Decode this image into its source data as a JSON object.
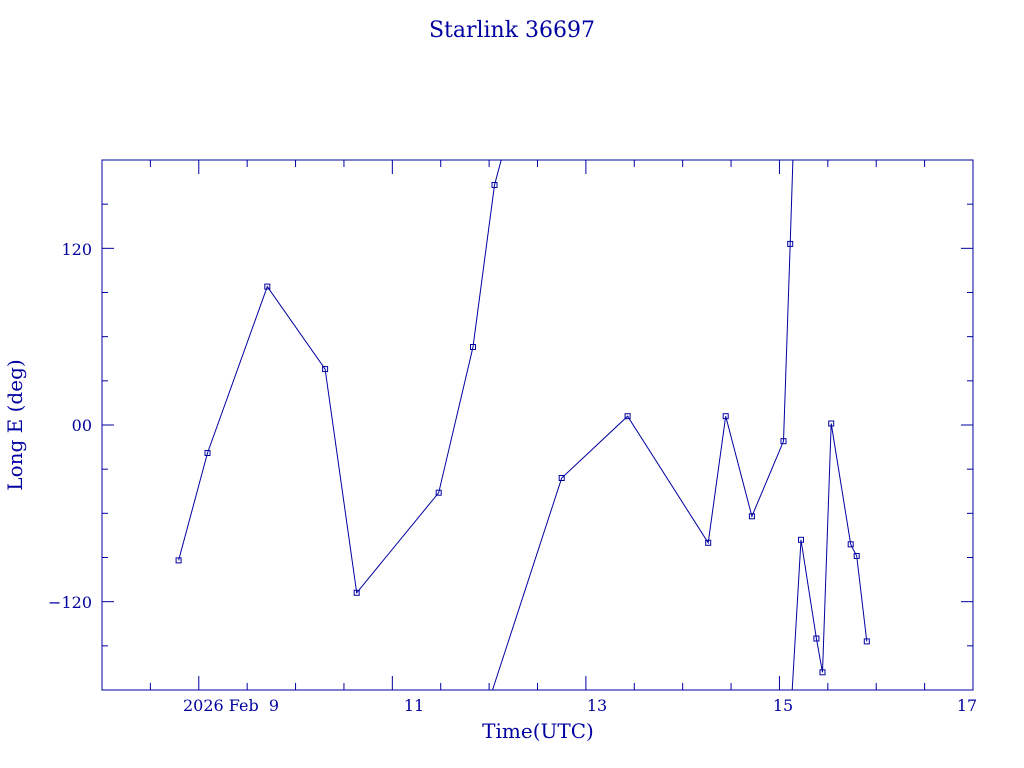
{
  "chart_data": {
    "type": "line",
    "title": "Starlink 36697",
    "xlabel": "Time(UTC)",
    "ylabel": "Long E (deg)",
    "x_tick_labels": [
      "2026 Feb  9",
      "11",
      "13",
      "15",
      "17"
    ],
    "y_tick_labels": [
      "120",
      "00",
      "−120"
    ],
    "xlim": [
      "2026-02-08 00:00",
      "2026-02-17 00:00"
    ],
    "ylim": [
      -180,
      180
    ],
    "grid": false,
    "color": "#0000a0",
    "series": [
      {
        "points": [
          {
            "x": "2026-02-08 19:00",
            "y": -92
          },
          {
            "x": "2026-02-09 02:10",
            "y": -19
          },
          {
            "x": "2026-02-09 17:00",
            "y": 94
          },
          {
            "x": "2026-02-10 07:20",
            "y": 38
          },
          {
            "x": "2026-02-10 15:10",
            "y": -114
          },
          {
            "x": "2026-02-11 11:30",
            "y": -46
          },
          {
            "x": "2026-02-11 20:00",
            "y": 53
          },
          {
            "x": "2026-02-12 01:20",
            "y": 163
          },
          {
            "x": "2026-02-12 03:00",
            "y": 180
          }
        ]
      },
      {
        "points": [
          {
            "x": "2026-02-12 00:50",
            "y": -180
          },
          {
            "x": "2026-02-12 18:00",
            "y": -36
          },
          {
            "x": "2026-02-13 10:20",
            "y": 6
          },
          {
            "x": "2026-02-14 06:20",
            "y": -80
          },
          {
            "x": "2026-02-14 10:40",
            "y": 6
          },
          {
            "x": "2026-02-14 17:10",
            "y": -62
          },
          {
            "x": "2026-02-15 01:00",
            "y": -11
          },
          {
            "x": "2026-02-15 02:40",
            "y": 123
          },
          {
            "x": "2026-02-15 03:20",
            "y": 180
          }
        ]
      },
      {
        "points": [
          {
            "x": "2026-02-15 03:10",
            "y": -180
          },
          {
            "x": "2026-02-15 05:20",
            "y": -78
          },
          {
            "x": "2026-02-15 09:10",
            "y": -145
          },
          {
            "x": "2026-02-15 10:40",
            "y": -168
          },
          {
            "x": "2026-02-15 12:50",
            "y": 1
          },
          {
            "x": "2026-02-15 17:40",
            "y": -81
          },
          {
            "x": "2026-02-15 19:10",
            "y": -89
          },
          {
            "x": "2026-02-15 21:40",
            "y": -147
          }
        ]
      }
    ]
  }
}
